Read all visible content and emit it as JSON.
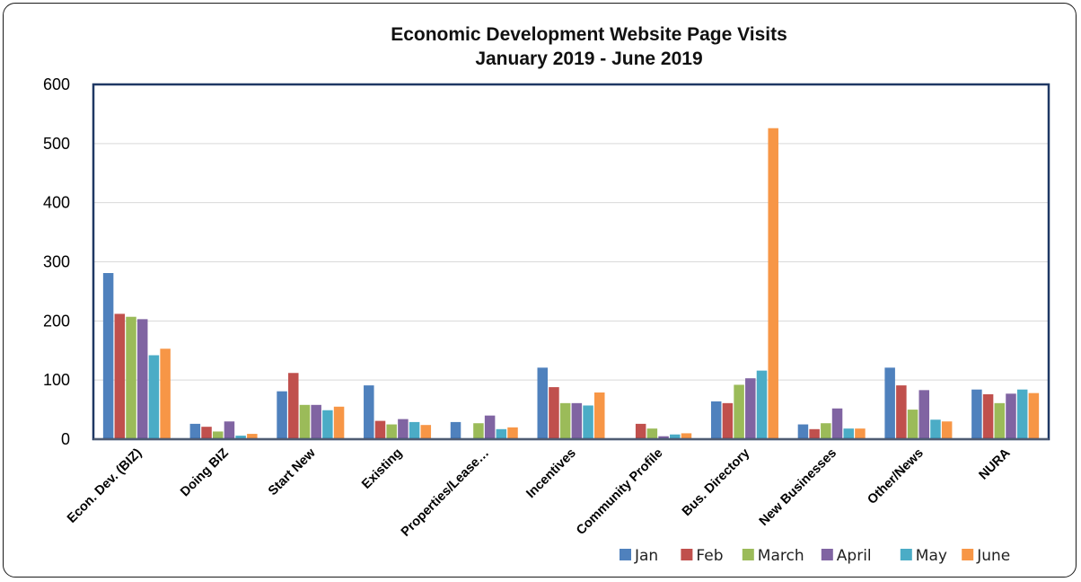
{
  "chart_data": {
    "type": "bar",
    "title": "Economic Development Website Page Visits",
    "subtitle": "January 2019 - June 2019",
    "categories": [
      "Econ. Dev. (BIZ)",
      "Doing BIZ",
      "Start New",
      "Existing",
      "Properties/Lease…",
      "Incentives",
      "Community Profile",
      "Bus. Directory",
      "New Businesses",
      "Other/News",
      "NURA"
    ],
    "series": [
      {
        "name": "Jan",
        "color": "#4F81BD",
        "values": [
          281,
          26,
          81,
          91,
          29,
          121,
          0,
          64,
          25,
          121,
          84
        ]
      },
      {
        "name": "Feb",
        "color": "#C0504D",
        "values": [
          212,
          21,
          112,
          31,
          0,
          88,
          26,
          61,
          17,
          91,
          76
        ]
      },
      {
        "name": "March",
        "color": "#9BBB59",
        "values": [
          207,
          13,
          58,
          25,
          27,
          61,
          18,
          92,
          27,
          50,
          61
        ]
      },
      {
        "name": "April",
        "color": "#8064A2",
        "values": [
          203,
          30,
          58,
          34,
          40,
          61,
          5,
          103,
          52,
          83,
          77
        ]
      },
      {
        "name": "May",
        "color": "#4BACC6",
        "values": [
          142,
          6,
          49,
          29,
          17,
          57,
          8,
          116,
          18,
          33,
          84
        ]
      },
      {
        "name": "June",
        "color": "#F79646",
        "values": [
          153,
          9,
          55,
          24,
          20,
          79,
          10,
          526,
          18,
          30,
          78
        ]
      }
    ],
    "yticks": [
      "0",
      "100",
      "200",
      "300",
      "400",
      "500",
      "600"
    ],
    "ylim": [
      0,
      600
    ],
    "grid": true,
    "legend_position": "bottom-right"
  }
}
